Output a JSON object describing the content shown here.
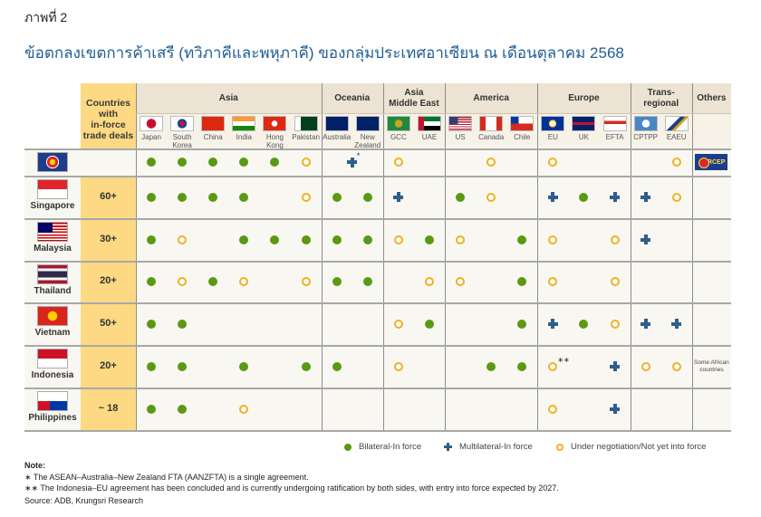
{
  "figure_label": "ภาพที่ 2",
  "title": "ข้อตกลงเขตการค้าเสรี (ทวิภาคีและพหุภาคี) ของกลุ่มประเทศอาเซียน ณ เดือนตุลาคม 2568",
  "chart_data": {
    "type": "table",
    "title": "ข้อตกลงเขตการค้าเสรี (ทวิภาคีและพหุภาคี) ของกลุ่มประเทศอาเซียน ณ เดือนตุลาคม 2568",
    "count_header": "Countries with in-force trade deals",
    "count_header_lines": [
      "Countries",
      "with",
      "in-force",
      "trade deals"
    ],
    "regions": [
      {
        "name": "Asia",
        "partners": [
          "Japan",
          "South Korea",
          "China",
          "India",
          "Hong Kong",
          "Pakistan"
        ]
      },
      {
        "name": "Oceania",
        "partners": [
          "Australia",
          "New Zealand"
        ]
      },
      {
        "name": "Asia Middle East",
        "partners": [
          "GCC",
          "UAE"
        ]
      },
      {
        "name": "America",
        "partners": [
          "US",
          "Canada",
          "Chile"
        ]
      },
      {
        "name": "Europe",
        "partners": [
          "EU",
          "UK",
          "EFTA"
        ]
      },
      {
        "name": "Trans-regional",
        "partners": [
          "CPTPP",
          "EAEU"
        ]
      },
      {
        "name": "Others",
        "partners": []
      }
    ],
    "region_label_lines": {
      "Asia Middle East": [
        "Asia",
        "Middle East"
      ]
    },
    "partner_label_lines": {
      "South Korea": [
        "South",
        "Korea"
      ],
      "Hong Kong": [
        "Hong",
        "Kong"
      ],
      "New Zealand": [
        "New",
        "Zealand"
      ]
    },
    "status_codes": {
      "B": "Bilateral-In force",
      "M": "Multilateral-In force",
      "N": "Under negotiation/Not yet into force",
      "": "none"
    },
    "partner_order": [
      "Japan",
      "South Korea",
      "China",
      "India",
      "Hong Kong",
      "Pakistan",
      "Australia",
      "New Zealand",
      "GCC",
      "UAE",
      "US",
      "Canada",
      "Chile",
      "EU",
      "UK",
      "EFTA",
      "CPTPP",
      "EAEU"
    ],
    "rows": [
      {
        "name": "ASEAN",
        "label": "",
        "count": "",
        "status": [
          "B",
          "B",
          "B",
          "B",
          "B",
          "N",
          "M*",
          "M*",
          "N",
          "",
          "",
          "N",
          "",
          "N",
          "",
          "",
          "",
          "N"
        ],
        "others": "RCEP",
        "notes": {
          "Australia/New Zealand": "*"
        }
      },
      {
        "name": "Singapore",
        "label": "Singapore",
        "count": "60+",
        "status": [
          "B",
          "B",
          "B",
          "B",
          "",
          "N",
          "B",
          "B",
          "M",
          "",
          "B",
          "N",
          "",
          "M",
          "B",
          "M",
          "M",
          "N"
        ],
        "others": ""
      },
      {
        "name": "Malaysia",
        "label": "Malaysia",
        "count": "30+",
        "status": [
          "B",
          "N",
          "",
          "B",
          "B",
          "B",
          "B",
          "B",
          "N",
          "B",
          "N",
          "",
          "B",
          "N",
          "",
          "N",
          "M",
          ""
        ],
        "others": ""
      },
      {
        "name": "Thailand",
        "label": "Thailand",
        "count": "20+",
        "status": [
          "B",
          "N",
          "B",
          "N",
          "",
          "N",
          "B",
          "B",
          "",
          "N",
          "N",
          "",
          "B",
          "N",
          "",
          "N",
          "",
          ""
        ],
        "others": ""
      },
      {
        "name": "Vietnam",
        "label": "Vietnam",
        "count": "50+",
        "status": [
          "B",
          "B",
          "",
          "",
          "",
          "",
          "",
          "",
          "N",
          "B",
          "",
          "",
          "B",
          "M",
          "B",
          "N",
          "M",
          "M"
        ],
        "others": ""
      },
      {
        "name": "Indonesia",
        "label": "Indonesia",
        "count": "20+",
        "status": [
          "B",
          "B",
          "",
          "B",
          "",
          "B",
          "B",
          "",
          "N",
          "",
          "",
          "B",
          "B",
          "N**",
          "",
          "M",
          "N",
          "N"
        ],
        "others": "Some African countries"
      },
      {
        "name": "Philippines",
        "label": "Philippines",
        "count": "~ 18",
        "status": [
          "B",
          "B",
          "",
          "N",
          "",
          "",
          "",
          "",
          "",
          "",
          "",
          "",
          "",
          "N",
          "",
          "M",
          "",
          ""
        ],
        "others": ""
      }
    ],
    "legend": [
      {
        "code": "B",
        "label": "Bilateral-In force",
        "color": "#5a9a12"
      },
      {
        "code": "M",
        "label": "Multilateral-In force",
        "color": "#2f5e8c"
      },
      {
        "code": "N",
        "label": "Under negotiation/Not yet into force",
        "color": "#f0b020"
      }
    ]
  },
  "notes": {
    "heading": "Note:",
    "items": [
      "∗ The ASEAN–Australia–New Zealand FTA (AANZFTA) is a single agreement.",
      "∗∗ The Indonesia–EU agreement has been concluded and is currently undergoing ratification by both sides, with entry into force expected by 2027."
    ],
    "source": "Source: ADB, Krungsri Research"
  },
  "colors": {
    "title": "#1f5d94",
    "count_column": "#fcd982",
    "header_bg": "#ece3d3",
    "bilateral": "#5a9a12",
    "multilateral": "#2f5e8c",
    "negotiation": "#f0b020"
  }
}
